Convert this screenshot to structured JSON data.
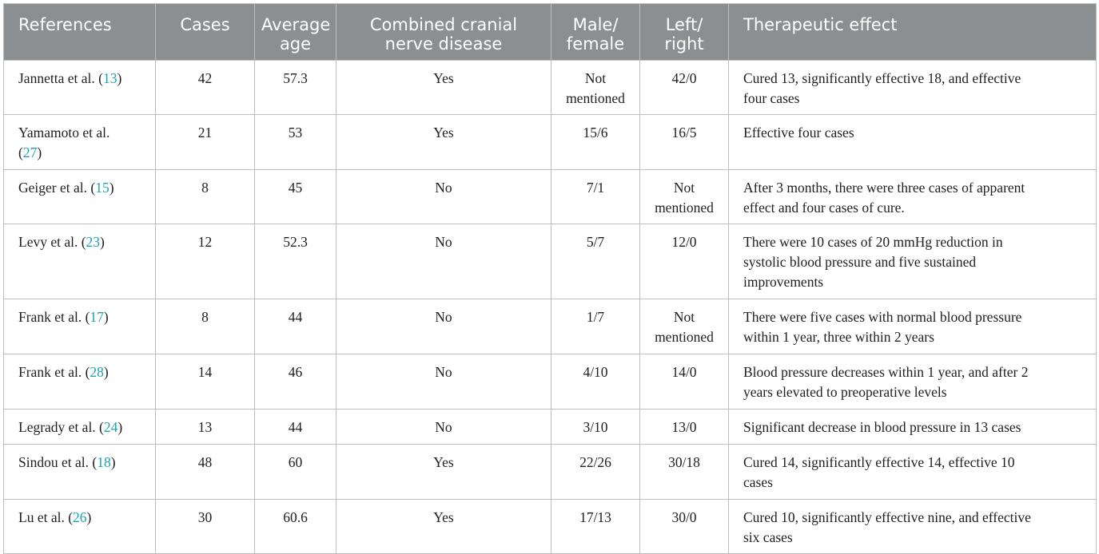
{
  "headers": {
    "references": "References",
    "cases": "Cases",
    "average_age": [
      "Average",
      "age"
    ],
    "combined": [
      "Combined cranial",
      "nerve disease"
    ],
    "male_female": [
      "Male/",
      "female"
    ],
    "left_right": [
      "Left/",
      "right"
    ],
    "effect": "Therapeutic effect"
  },
  "rows": [
    {
      "ref_text": "Jannetta et al. (",
      "ref_num": "13",
      "ref_close": ")",
      "cases": "42",
      "age": "57.3",
      "combined": "Yes",
      "mf": [
        "Not",
        "mentioned"
      ],
      "lr": "42/0",
      "effect": [
        "Cured 13, significantly effective 18, and effective",
        "four cases"
      ]
    },
    {
      "ref_text": "Yamamoto et al.",
      "ref_line2_open": "(",
      "ref_num": "27",
      "ref_close": ")",
      "cases": "21",
      "age": "53",
      "combined": "Yes",
      "mf": "15/6",
      "lr": "16/5",
      "effect": [
        "Effective four cases"
      ]
    },
    {
      "ref_text": "Geiger et al. (",
      "ref_num": "15",
      "ref_close": ")",
      "cases": "8",
      "age": "45",
      "combined": "No",
      "mf": "7/1",
      "lr": [
        "Not",
        "mentioned"
      ],
      "effect": [
        "After 3 months, there were three cases of apparent",
        "effect and four cases of cure."
      ]
    },
    {
      "ref_text": "Levy et al. (",
      "ref_num": "23",
      "ref_close": ")",
      "cases": "12",
      "age": "52.3",
      "combined": "No",
      "mf": "5/7",
      "lr": "12/0",
      "effect": [
        "There were 10 cases of 20 mmHg reduction in",
        "systolic blood pressure and five sustained",
        "improvements"
      ]
    },
    {
      "ref_text": "Frank et al. (",
      "ref_num": "17",
      "ref_close": ")",
      "cases": "8",
      "age": "44",
      "combined": "No",
      "mf": "1/7",
      "lr": [
        "Not",
        "mentioned"
      ],
      "effect": [
        "There were five cases with normal blood pressure",
        "within 1 year, three within 2 years"
      ]
    },
    {
      "ref_text": "Frank et al. (",
      "ref_num": "28",
      "ref_close": ")",
      "cases": "14",
      "age": "46",
      "combined": "No",
      "mf": "4/10",
      "lr": "14/0",
      "effect": [
        "Blood pressure decreases within 1 year, and after 2",
        "years elevated to preoperative levels"
      ]
    },
    {
      "ref_text": "Legrady et al. (",
      "ref_num": "24",
      "ref_close": ")",
      "cases": "13",
      "age": "44",
      "combined": "No",
      "mf": "3/10",
      "lr": "13/0",
      "effect": [
        "Significant decrease in blood pressure in 13 cases"
      ]
    },
    {
      "ref_text": "Sindou et al. (",
      "ref_num": "18",
      "ref_close": ")",
      "cases": "48",
      "age": "60",
      "combined": "Yes",
      "mf": "22/26",
      "lr": "30/18",
      "effect": [
        "Cured 14, significantly effective 14, effective 10",
        "cases"
      ]
    },
    {
      "ref_text": "Lu et al. (",
      "ref_num": "26",
      "ref_close": ")",
      "cases": "30",
      "age": "60.6",
      "combined": "Yes",
      "mf": "17/13",
      "lr": "30/0",
      "effect": [
        "Cured 10, significantly effective nine, and effective",
        "six cases"
      ]
    }
  ]
}
